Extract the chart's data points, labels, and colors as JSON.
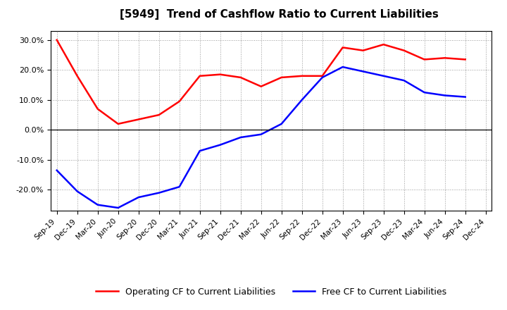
{
  "title": "[5949]  Trend of Cashflow Ratio to Current Liabilities",
  "x_labels": [
    "Sep-19",
    "Dec-19",
    "Mar-20",
    "Jun-20",
    "Sep-20",
    "Dec-20",
    "Mar-21",
    "Jun-21",
    "Sep-21",
    "Dec-21",
    "Mar-22",
    "Jun-22",
    "Sep-22",
    "Dec-22",
    "Mar-23",
    "Jun-23",
    "Sep-23",
    "Dec-23",
    "Mar-24",
    "Jun-24",
    "Sep-24",
    "Dec-24"
  ],
  "operating_cf": [
    30.0,
    18.0,
    7.0,
    2.0,
    3.5,
    5.0,
    9.5,
    18.0,
    18.5,
    17.5,
    14.5,
    17.5,
    18.0,
    18.0,
    27.5,
    26.5,
    28.5,
    26.5,
    23.5,
    24.0,
    23.5,
    null
  ],
  "free_cf": [
    -13.5,
    -20.5,
    -25.0,
    -26.0,
    -22.5,
    -21.0,
    -19.0,
    -7.0,
    -5.0,
    -2.5,
    -1.5,
    2.0,
    10.0,
    17.5,
    21.0,
    19.5,
    18.0,
    16.5,
    12.5,
    11.5,
    11.0,
    null
  ],
  "ylim": [
    -27,
    33
  ],
  "yticks": [
    -20.0,
    -10.0,
    0.0,
    10.0,
    20.0,
    30.0
  ],
  "yticklabels": [
    "-20.0%",
    "-10.0%",
    "0.0%",
    "10.0%",
    "20.0%",
    "30.0%"
  ],
  "operating_color": "#FF0000",
  "free_color": "#0000FF",
  "background_color": "#FFFFFF",
  "plot_bg_color": "#FFFFFF",
  "grid_color": "#AAAAAA",
  "title_fontsize": 11,
  "legend_operating": "Operating CF to Current Liabilities",
  "legend_free": "Free CF to Current Liabilities"
}
